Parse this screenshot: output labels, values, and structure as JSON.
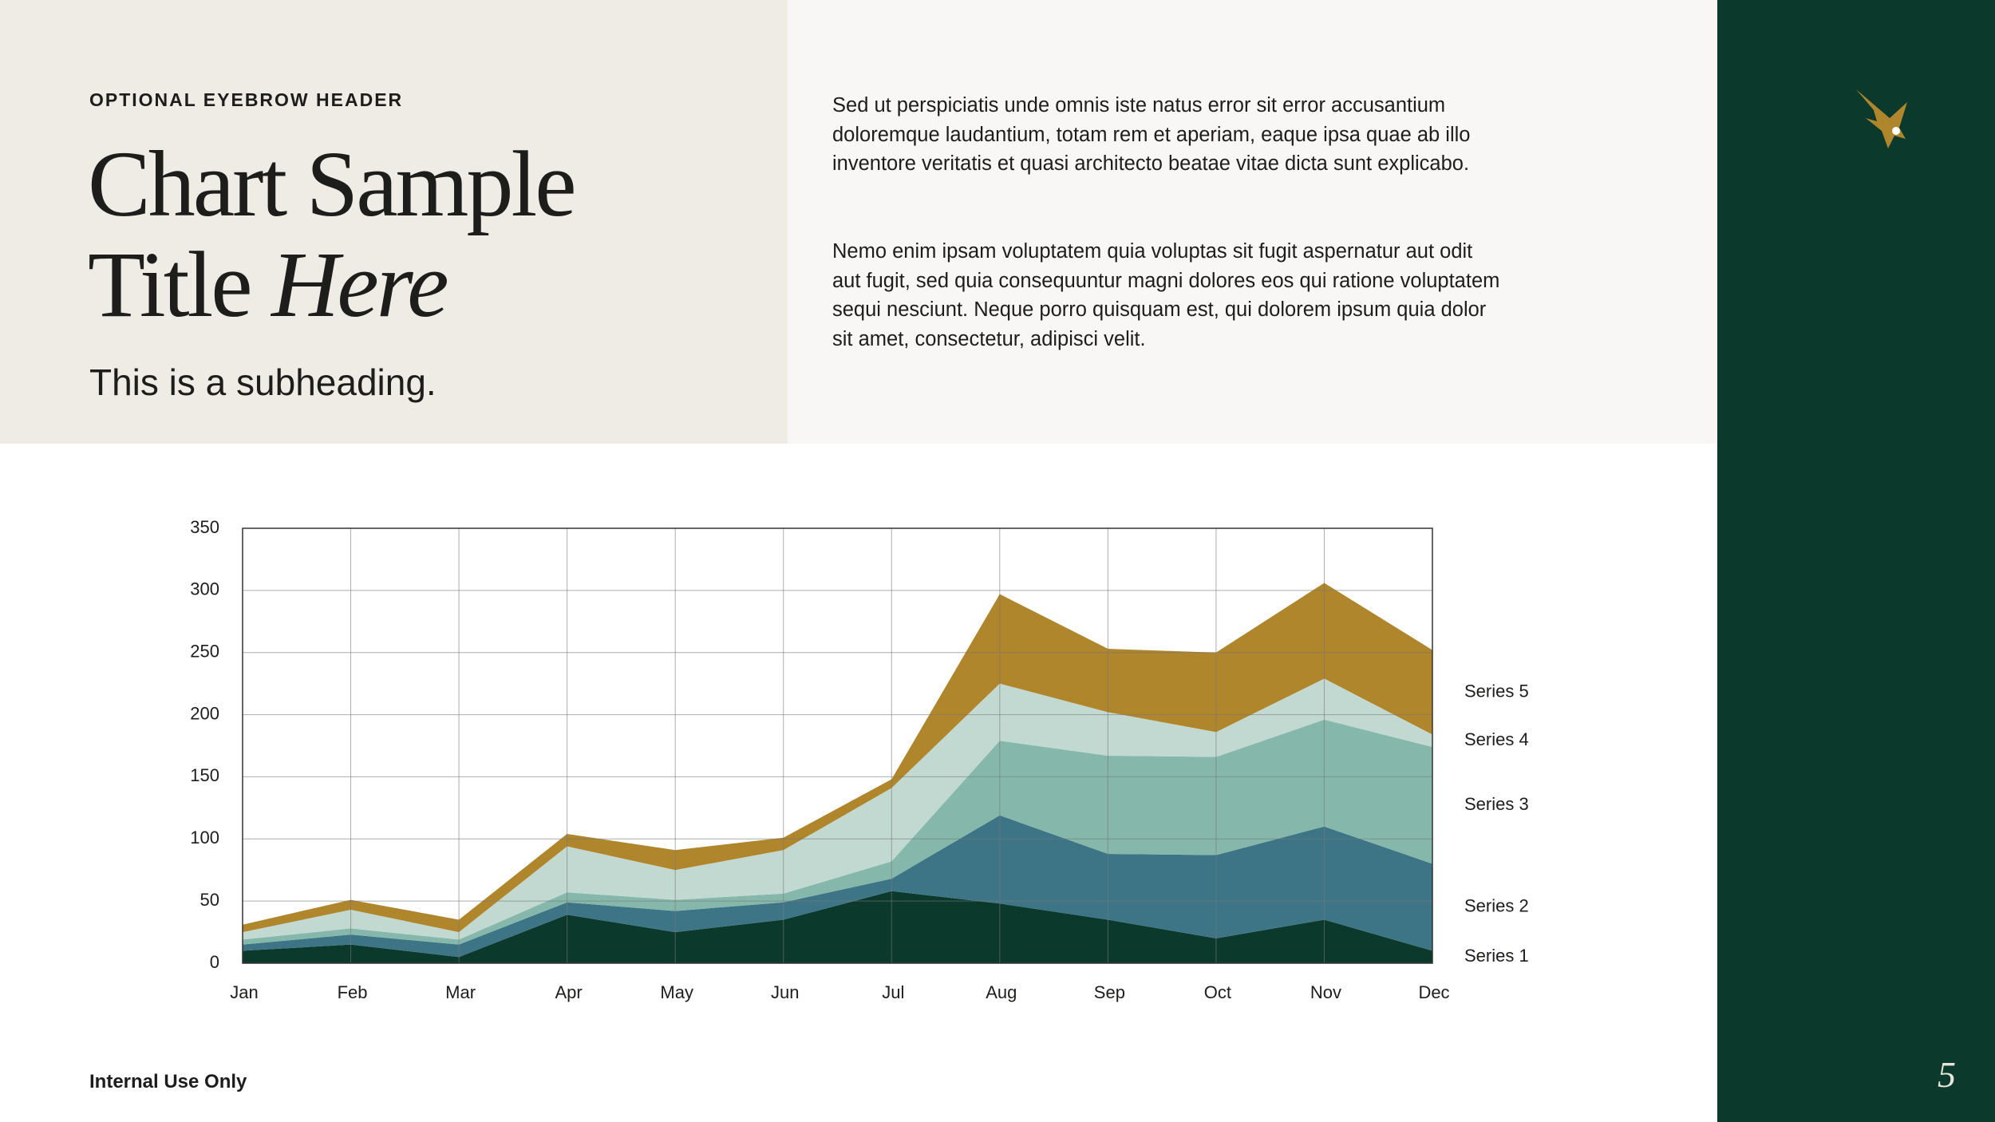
{
  "eyebrow": "OPTIONAL EYEBROW HEADER",
  "title": {
    "line1": "Chart Sample",
    "line2": "Title",
    "italic": "Here"
  },
  "subheading": "This is a subheading.",
  "paragraphs": [
    "Sed ut perspiciatis unde omnis iste natus error sit error accusantium doloremque laudantium, totam rem et aperiam, eaque ipsa quae ab illo inventore veritatis et quasi architecto beatae vitae dicta sunt explicabo.",
    "Nemo enim ipsam voluptatem quia voluptas sit fugit  aspernatur aut odit aut fugit, sed quia consequuntur magni dolores eos qui ratione voluptatem sequi nesciunt. Neque porro quisquam est, qui dolorem ipsum quia dolor sit amet, consectetur, adipisci velit."
  ],
  "footer": "Internal Use Only",
  "page_number": "5",
  "chart_data": {
    "type": "area",
    "stacked": true,
    "categories": [
      "Jan",
      "Feb",
      "Mar",
      "Apr",
      "May",
      "Jun",
      "Jul",
      "Aug",
      "Sep",
      "Oct",
      "Nov",
      "Dec"
    ],
    "series": [
      {
        "name": "Series 1",
        "color": "#0b3a2c",
        "values": [
          10,
          15,
          5,
          39,
          25,
          35,
          58,
          48,
          35,
          20,
          35,
          10
        ]
      },
      {
        "name": "Series 2",
        "color": "#3d7587",
        "values": [
          5,
          8,
          10,
          10,
          17,
          14,
          10,
          71,
          53,
          67,
          75,
          70
        ]
      },
      {
        "name": "Series 3",
        "color": "#85b8ab",
        "values": [
          4,
          5,
          4,
          8,
          9,
          7,
          14,
          60,
          79,
          79,
          86,
          94
        ]
      },
      {
        "name": "Series 4",
        "color": "#c2d9d2",
        "values": [
          6,
          15,
          6,
          37,
          24,
          35,
          59,
          46,
          35,
          20,
          33,
          10
        ]
      },
      {
        "name": "Series 5",
        "color": "#b0862c",
        "values": [
          6,
          8,
          10,
          10,
          16,
          10,
          7,
          72,
          51,
          64,
          77,
          68
        ]
      }
    ],
    "ylim": [
      0,
      350
    ],
    "yticks": [
      0,
      50,
      100,
      150,
      200,
      250,
      300,
      350
    ],
    "grid": true,
    "legend": "right"
  }
}
